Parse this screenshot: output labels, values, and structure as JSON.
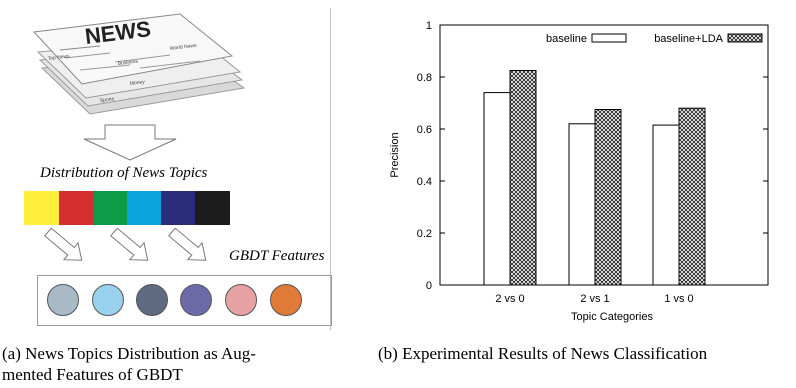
{
  "left_figure": {
    "newspaper_headline": "NEWS",
    "newspaper_sections": [
      "Top News",
      "Business",
      "World News",
      "Money",
      "Sports"
    ],
    "distribution_label": "Distribution of News Topics",
    "topic_colors": [
      "#ffef3c",
      "#d42f2f",
      "#0f9a4a",
      "#0ba3dd",
      "#2a2c7a",
      "#1c1c1c"
    ],
    "features_label": "GBDT Features",
    "feature_colors": [
      "#a7bac6",
      "#99d2ee",
      "#5e6b80",
      "#6d6aa8",
      "#e7a3a3",
      "#e07b37"
    ],
    "caption_line1": "(a) News Topics Distribution as Aug-",
    "caption_line2": "mented Features of GBDT"
  },
  "right_figure": {
    "caption": "(b) Experimental Results of News Classification"
  },
  "chart_data": {
    "type": "bar",
    "categories": [
      "2 vs 0",
      "2 vs 1",
      "1 vs 0"
    ],
    "series": [
      {
        "name": "baseline",
        "values": [
          0.74,
          0.62,
          0.615
        ],
        "pattern": "white"
      },
      {
        "name": "baseline+LDA",
        "values": [
          0.825,
          0.675,
          0.68
        ],
        "pattern": "crosshatch"
      }
    ],
    "xlabel": "Topic Categories",
    "ylabel": "Precision",
    "ylim": [
      0,
      1
    ],
    "yticks": [
      "0",
      "0.2",
      "0.4",
      "0.6",
      "0.8",
      "1"
    ],
    "grid": false,
    "legend": "top-right"
  }
}
